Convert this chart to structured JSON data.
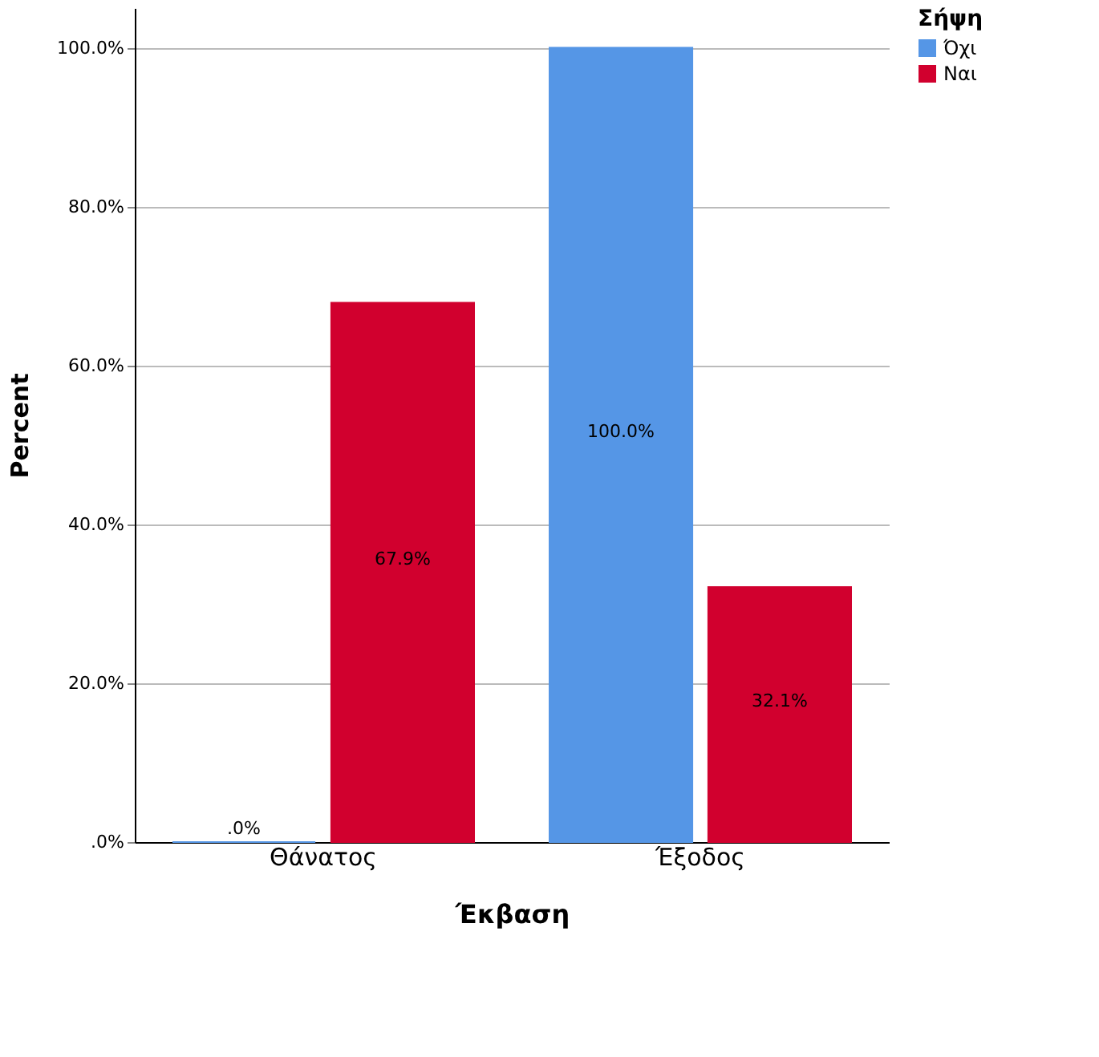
{
  "chart_data": {
    "type": "bar",
    "xlabel": "Έκβαση",
    "ylabel": "Percent",
    "legend_title": "Σήψη",
    "categories": [
      "Θάνατος",
      "Έξοδος"
    ],
    "series": [
      {
        "name": "Όχι",
        "color": "#5596e6",
        "values": [
          0,
          100
        ],
        "value_labels": [
          ".0%",
          "100.0%"
        ]
      },
      {
        "name": "Ναι",
        "color": "#d1002e",
        "values": [
          67.9,
          32.1
        ],
        "value_labels": [
          "67.9%",
          "32.1%"
        ]
      }
    ],
    "ylim": [
      0,
      105
    ],
    "yticks": [
      {
        "value": 0,
        "label": ".0%"
      },
      {
        "value": 20,
        "label": "20.0%"
      },
      {
        "value": 40,
        "label": "40.0%"
      },
      {
        "value": 60,
        "label": "60.0%"
      },
      {
        "value": 80,
        "label": "80.0%"
      },
      {
        "value": 100,
        "label": "100.0%"
      }
    ],
    "grid": "y",
    "legend": "top right"
  }
}
